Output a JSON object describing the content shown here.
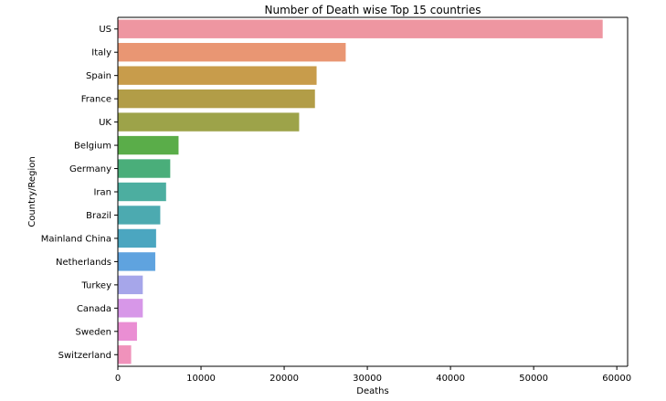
{
  "chart_data": {
    "type": "bar",
    "orientation": "horizontal",
    "title": "Number of Death wise Top 15 countries",
    "xlabel": "Deaths",
    "ylabel": "Country/Region",
    "xlim": [
      0,
      61300
    ],
    "xticks": [
      0,
      10000,
      20000,
      30000,
      40000,
      50000,
      60000
    ],
    "grid": false,
    "legend": "none",
    "categories": [
      "US",
      "Italy",
      "Spain",
      "France",
      "UK",
      "Belgium",
      "Germany",
      "Iran",
      "Brazil",
      "Mainland China",
      "Netherlands",
      "Turkey",
      "Canada",
      "Sweden",
      "Switzerland"
    ],
    "values": [
      58300,
      27400,
      23900,
      23700,
      21800,
      7300,
      6300,
      5800,
      5100,
      4600,
      4500,
      3000,
      3000,
      2300,
      1600
    ],
    "colors": [
      "#ee96a1",
      "#e99673",
      "#c89c4b",
      "#b29d47",
      "#9da349",
      "#5aad49",
      "#4aae7a",
      "#4caea0",
      "#4caab0",
      "#4ba6c0",
      "#5fa3df",
      "#a6a6ea",
      "#d797e8",
      "#ea8ed3",
      "#f092bb"
    ]
  }
}
